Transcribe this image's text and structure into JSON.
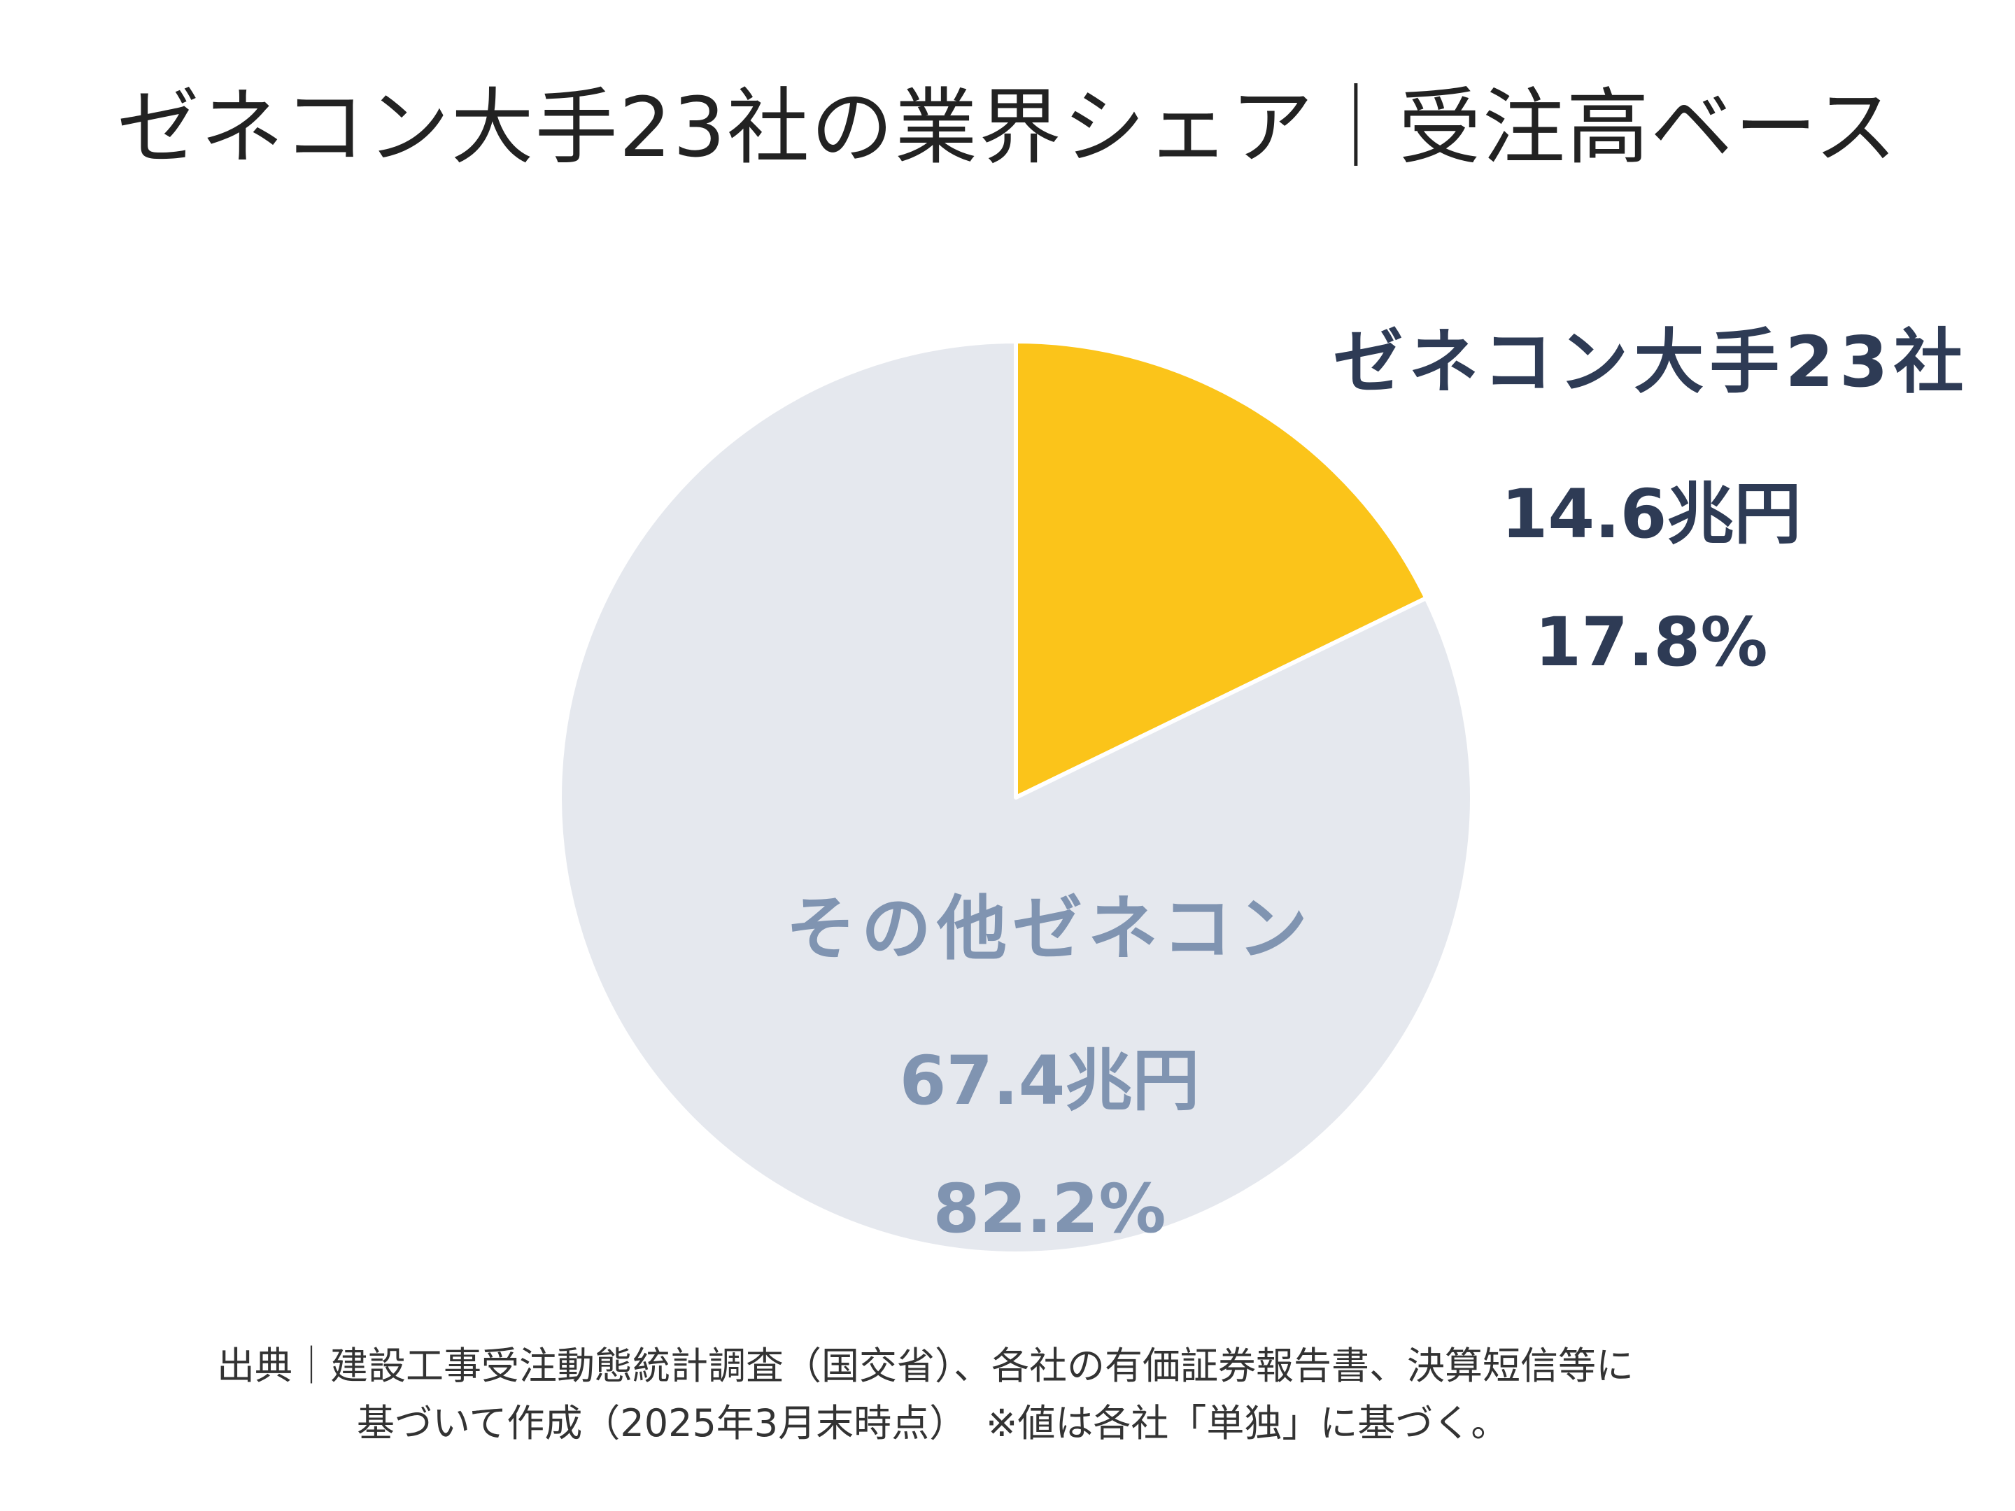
{
  "title": "ゼネコン大手23社の業界シェア｜受注高ベース",
  "chart_data": {
    "type": "pie",
    "title": "ゼネコン大手23社の業界シェア｜受注高ベース",
    "slices": [
      {
        "name": "ゼネコン大手23社",
        "amount_label": "14.6兆円",
        "value": 14.6,
        "percent": 17.8,
        "percent_label": "17.8%",
        "color": "#FBC41A",
        "text_color": "#2E3B55"
      },
      {
        "name": "その他ゼネコン",
        "amount_label": "67.4兆円",
        "value": 67.4,
        "percent": 82.2,
        "percent_label": "82.2%",
        "color": "#E5E8EE",
        "text_color": "#8094B1"
      }
    ],
    "start_angle_deg": 0,
    "direction": "clockwise"
  },
  "source": {
    "line1": "出典｜建設工事受注動態統計調査（国交省）、各社の有価証券報告書、決算短信等に",
    "line2": "基づいて作成（2025年3月末時点）　※値は各社「単独」に基づく。"
  }
}
